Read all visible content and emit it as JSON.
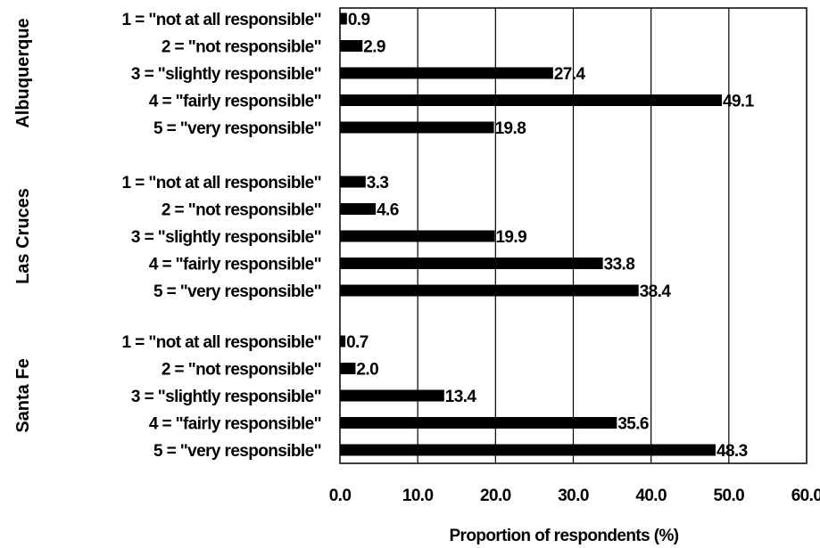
{
  "chart_data": {
    "type": "bar",
    "orientation": "horizontal",
    "title": "",
    "xlabel": "Proportion of respondents (%)",
    "ylabel": "",
    "xlim": [
      0,
      60
    ],
    "xticks": [
      "0.0",
      "10.0",
      "20.0",
      "30.0",
      "40.0",
      "50.0",
      "60.0"
    ],
    "grid": "vertical",
    "legend": "none",
    "bar_color": "#000000",
    "categories": [
      "1 = \"not at all responsible\"",
      "2 = \"not responsible\"",
      "3 = \"slightly responsible\"",
      "4 = \"fairly responsible\"",
      "5 = \"very responsible\""
    ],
    "groups": [
      {
        "name": "Albuquerque",
        "values": [
          0.9,
          2.9,
          27.4,
          49.1,
          19.8
        ],
        "labels": [
          "0.9",
          "2.9",
          "27.4",
          "49.1",
          "19.8"
        ]
      },
      {
        "name": "Las Cruces",
        "values": [
          3.3,
          4.6,
          19.9,
          33.8,
          38.4
        ],
        "labels": [
          "3.3",
          "4.6",
          "19.9",
          "33.8",
          "38.4"
        ]
      },
      {
        "name": "Santa Fe",
        "values": [
          0.7,
          2.0,
          13.4,
          35.6,
          48.3
        ],
        "labels": [
          "0.7",
          "2.0",
          "13.4",
          "35.6",
          "48.3"
        ]
      }
    ]
  }
}
